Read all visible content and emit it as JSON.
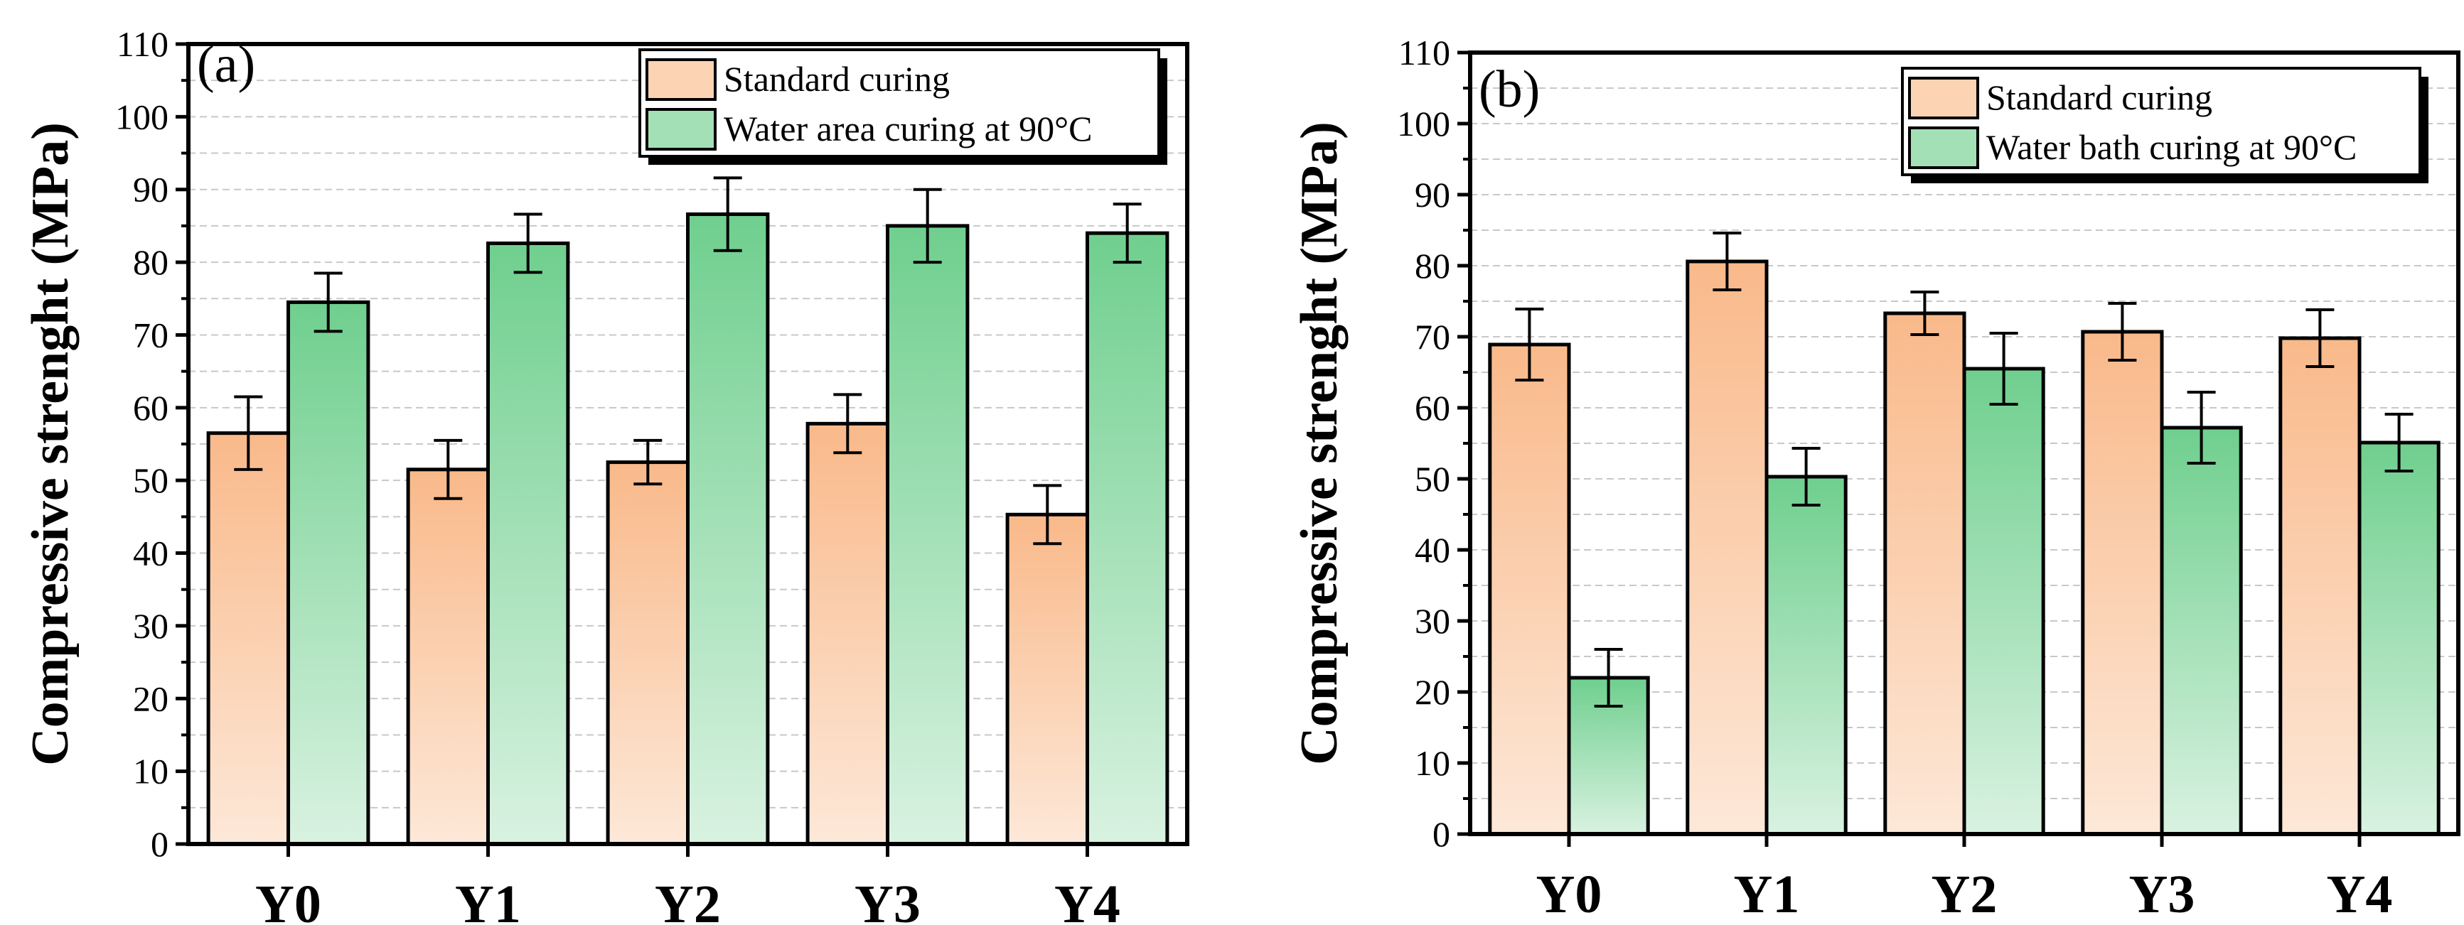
{
  "chart_data": [
    {
      "type": "bar",
      "panel_label": "(a)",
      "ylabel": "Compressive strenght (MPa)",
      "ylim": [
        0,
        110
      ],
      "yticks": [
        0,
        10,
        20,
        30,
        40,
        50,
        60,
        70,
        80,
        90,
        100,
        110
      ],
      "grid": true,
      "legend_position": "top-right",
      "categories": [
        "Y0",
        "Y1",
        "Y2",
        "Y3",
        "Y4"
      ],
      "series": [
        {
          "name": "Standard curing",
          "color": "#f9b98a",
          "values": [
            56.5,
            51.5,
            52.5,
            57.8,
            45.3
          ],
          "errors": [
            5,
            4,
            3,
            4,
            4
          ]
        },
        {
          "name": "Water area curing at 90°C",
          "color": "#6fcf8e",
          "values": [
            74.5,
            82.6,
            86.6,
            85.0,
            84.0
          ],
          "errors": [
            4,
            4,
            5,
            5,
            4
          ]
        }
      ]
    },
    {
      "type": "bar",
      "panel_label": "(b)",
      "ylabel": "Compressive strenght (MPa)",
      "ylim": [
        0,
        110
      ],
      "yticks": [
        0,
        10,
        20,
        30,
        40,
        50,
        60,
        70,
        80,
        90,
        100,
        110
      ],
      "grid": true,
      "legend_position": "top-right",
      "categories": [
        "Y0",
        "Y1",
        "Y2",
        "Y3",
        "Y4"
      ],
      "series": [
        {
          "name": "Standard curing",
          "color": "#f9b98a",
          "values": [
            68.9,
            80.6,
            73.3,
            70.7,
            69.8
          ],
          "errors": [
            5,
            4,
            3,
            4,
            4
          ]
        },
        {
          "name": "Water bath curing at 90°C",
          "color": "#6fcf8e",
          "values": [
            22.0,
            50.3,
            65.5,
            57.2,
            55.1
          ],
          "errors": [
            4,
            4,
            5,
            5,
            4
          ]
        }
      ]
    }
  ]
}
